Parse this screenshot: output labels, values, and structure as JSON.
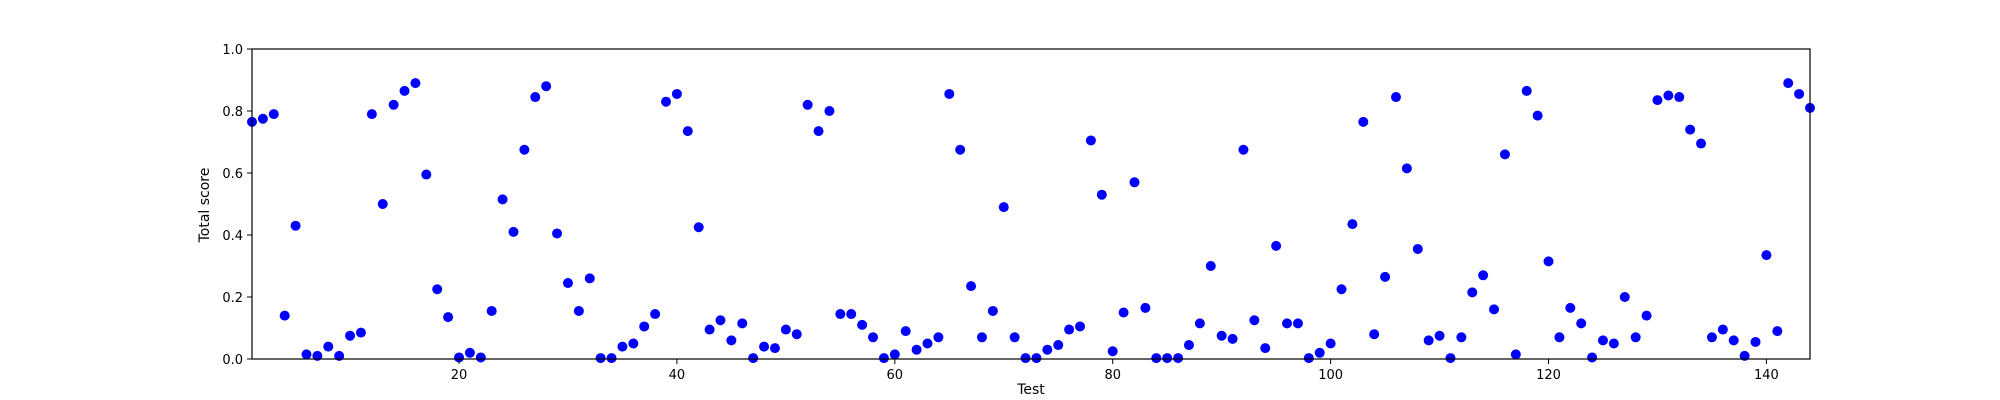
{
  "chart_data": {
    "type": "scatter",
    "title": "",
    "xlabel": "Test",
    "ylabel": "Total score",
    "xlim": [
      1,
      144
    ],
    "ylim": [
      0.0,
      1.0
    ],
    "xticks": [
      20,
      40,
      60,
      80,
      100,
      120,
      140
    ],
    "xtick_labels": [
      "20",
      "40",
      "60",
      "80",
      "100",
      "120",
      "140"
    ],
    "yticks": [
      0.0,
      0.2,
      0.4,
      0.6,
      0.8,
      1.0
    ],
    "ytick_labels": [
      "0.0",
      "0.2",
      "0.4",
      "0.6",
      "0.8",
      "1.0"
    ],
    "grid": false,
    "legend": "none",
    "marker_color": "#0000ff",
    "series": [
      {
        "x": [
          1,
          2,
          3,
          4,
          5,
          6,
          7,
          8,
          9,
          10,
          11,
          12,
          13,
          14,
          15,
          16,
          17,
          18,
          19,
          20,
          21,
          22,
          23,
          24,
          25,
          26,
          27,
          28,
          29,
          30,
          31,
          32,
          33,
          34,
          35,
          36,
          37,
          38,
          39,
          40,
          41,
          42,
          43,
          44,
          45,
          46,
          47,
          48,
          49,
          50,
          51,
          52,
          53,
          54,
          55,
          56,
          57,
          58,
          59,
          60,
          61,
          62,
          63,
          64,
          65,
          66,
          67,
          68,
          69,
          70,
          71,
          72,
          73,
          74,
          75,
          76,
          77,
          78,
          79,
          80,
          81,
          82,
          83,
          84,
          85,
          86,
          87,
          88,
          89,
          90,
          91,
          92,
          93,
          94,
          95,
          96,
          97,
          98,
          99,
          100,
          101,
          102,
          103,
          104,
          105,
          106,
          107,
          108,
          109,
          110,
          111,
          112,
          113,
          114,
          115,
          116,
          117,
          118,
          119,
          120,
          121,
          122,
          123,
          124,
          125,
          126,
          127,
          128,
          129,
          130,
          131,
          132,
          133,
          134,
          135,
          136,
          137,
          138,
          139,
          140,
          141,
          142,
          143,
          144
        ],
        "y": [
          0.765,
          0.775,
          0.79,
          0.14,
          0.43,
          0.015,
          0.01,
          0.04,
          0.01,
          0.075,
          0.085,
          0.79,
          0.5,
          0.82,
          0.865,
          0.89,
          0.595,
          0.225,
          0.135,
          0.005,
          0.02,
          0.005,
          0.155,
          0.515,
          0.41,
          0.675,
          0.845,
          0.88,
          0.405,
          0.245,
          0.155,
          0.26,
          0.003,
          0.003,
          0.04,
          0.05,
          0.105,
          0.145,
          0.83,
          0.855,
          0.735,
          0.425,
          0.095,
          0.125,
          0.06,
          0.115,
          0.003,
          0.04,
          0.035,
          0.095,
          0.08,
          0.82,
          0.735,
          0.8,
          0.145,
          0.145,
          0.11,
          0.07,
          0.003,
          0.015,
          0.09,
          0.03,
          0.05,
          0.07,
          0.855,
          0.675,
          0.235,
          0.07,
          0.155,
          0.49,
          0.07,
          0.003,
          0.003,
          0.03,
          0.045,
          0.095,
          0.105,
          0.705,
          0.53,
          0.025,
          0.15,
          0.57,
          0.165,
          0.003,
          0.003,
          0.003,
          0.045,
          0.115,
          0.3,
          0.075,
          0.065,
          0.675,
          0.125,
          0.035,
          0.365,
          0.115,
          0.115,
          0.003,
          0.02,
          0.05,
          0.225,
          0.435,
          0.765,
          0.08,
          0.265,
          0.845,
          0.615,
          0.355,
          0.06,
          0.075,
          0.003,
          0.07,
          0.215,
          0.27,
          0.16,
          0.66,
          0.015,
          0.865,
          0.785,
          0.315,
          0.07,
          0.165,
          0.115,
          0.005,
          0.06,
          0.05,
          0.2,
          0.07,
          0.14,
          0.835,
          0.85,
          0.845,
          0.74,
          0.695,
          0.07,
          0.095,
          0.06,
          0.01,
          0.055,
          0.335,
          0.09,
          0.89,
          0.855,
          0.81
        ]
      }
    ]
  }
}
